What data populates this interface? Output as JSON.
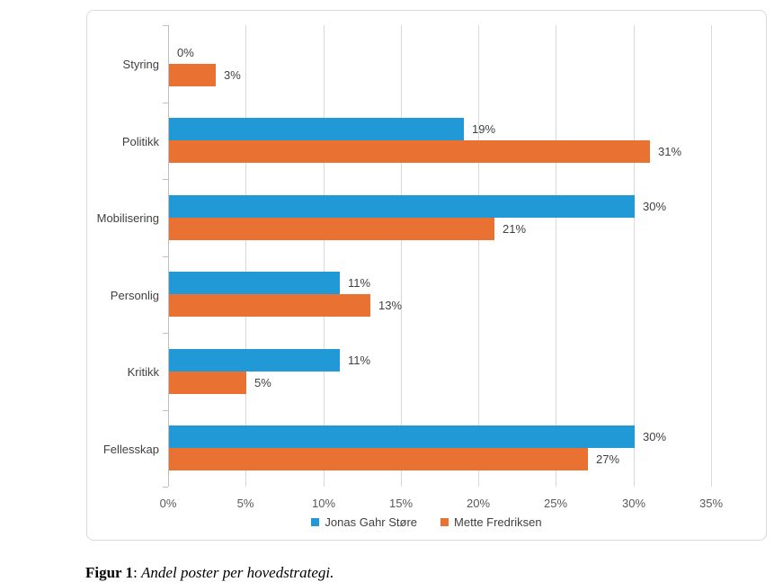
{
  "figure_caption": {
    "prefix": "Figur 1",
    "separator": ": ",
    "text": "Andel poster per hovedstrategi."
  },
  "chart_data": {
    "type": "bar",
    "orientation": "horizontal",
    "title": "",
    "xlabel": "",
    "ylabel": "",
    "categories": [
      "Styring",
      "Politikk",
      "Mobilisering",
      "Personlig",
      "Kritikk",
      "Fellesskap"
    ],
    "series": [
      {
        "name": "Jonas Gahr Støre",
        "color": "#2099D6",
        "values": [
          0,
          19,
          30,
          11,
          11,
          30
        ]
      },
      {
        "name": "Mette Fredriksen",
        "color": "#E97132",
        "values": [
          3,
          31,
          21,
          13,
          5,
          27
        ]
      }
    ],
    "value_suffix": "%",
    "xlim": [
      0,
      35
    ],
    "x_ticks": [
      "0%",
      "5%",
      "10%",
      "15%",
      "20%",
      "25%",
      "30%",
      "35%"
    ],
    "grid": true,
    "legend_position": "bottom",
    "colors": {
      "gridline": "#D9D9D9",
      "axis_line": "#BFBFBF",
      "tick_text": "#595959",
      "label_text": "#404040",
      "frame_border": "#D9D9D9"
    }
  }
}
